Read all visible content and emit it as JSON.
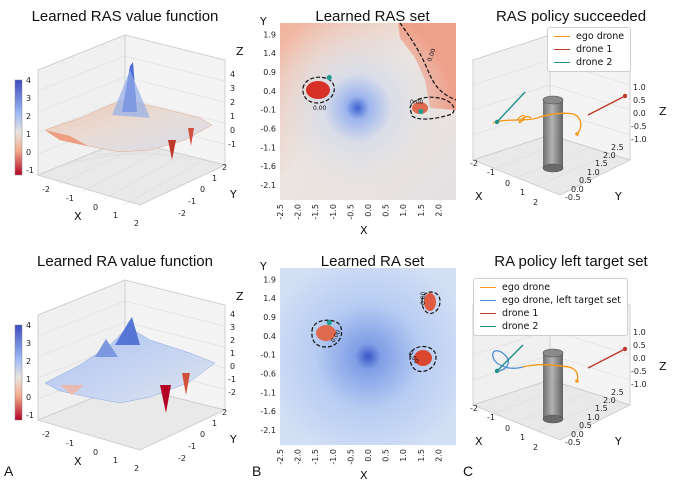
{
  "panel_letters": {
    "a": "A",
    "b": "B",
    "c": "C"
  },
  "chart_data": [
    {
      "type": "surface3d",
      "title": "Learned RAS value function",
      "xlabel": "X",
      "ylabel": "Y",
      "zlabel": "Z",
      "x_ticks": [
        "-2",
        "-1",
        "0",
        "1",
        "2"
      ],
      "y_ticks": [
        "-2",
        "-1",
        "0",
        "1",
        "2"
      ],
      "z_ticks": [
        "4",
        "3",
        "2",
        "1",
        "0",
        "-1"
      ],
      "colorbar_ticks": [
        "4",
        "3",
        "2",
        "1",
        "0",
        "-1"
      ],
      "colorbar": {
        "min": -1.5,
        "max": 4,
        "cmap": "coolwarm_r"
      }
    },
    {
      "type": "heatmap",
      "title": "Learned RAS set",
      "xlabel": "X",
      "ylabel": "Y",
      "x_ticks": [
        "-2.5",
        "-2.0",
        "-1.5",
        "-1.0",
        "-0.5",
        "0.0",
        "0.5",
        "1.0",
        "1.5",
        "2.0"
      ],
      "y_ticks": [
        "1.9",
        "1.4",
        "0.9",
        "0.4",
        "-0.1",
        "-0.6",
        "-1.1",
        "-1.6",
        "-2.1"
      ],
      "xlim": [
        -2.5,
        2.5
      ],
      "ylim": [
        -2.5,
        2.2
      ],
      "contour_label": "0.00",
      "target": {
        "x": -0.05,
        "y": -0.1
      },
      "obstacle_points": [
        {
          "x": -1.1,
          "y": 0.75
        },
        {
          "x": 1.5,
          "y": -0.15
        }
      ]
    },
    {
      "type": "trajectory3d",
      "title": "RAS policy succeeded",
      "xlabel": "X",
      "ylabel": "Y",
      "zlabel": "Z",
      "x_ticks": [
        "-2",
        "-1",
        "0",
        "1",
        "2"
      ],
      "y_ticks": [
        "-0.5",
        "0.0",
        "0.5",
        "1.0",
        "1.5",
        "2.0",
        "2.5"
      ],
      "z_ticks": [
        "1.0",
        "0.5",
        "0.0",
        "-0.5",
        "-1.0"
      ],
      "series": [
        {
          "name": "ego drone",
          "color": "#f39a1c"
        },
        {
          "name": "drone 1",
          "color": "#c0392b"
        },
        {
          "name": "drone 2",
          "color": "#1f8f8a"
        }
      ]
    },
    {
      "type": "surface3d",
      "title": "Learned RA value function",
      "xlabel": "X",
      "ylabel": "Y",
      "zlabel": "Z",
      "x_ticks": [
        "-2",
        "-1",
        "0",
        "1",
        "2"
      ],
      "y_ticks": [
        "-2",
        "-1",
        "0",
        "1",
        "2"
      ],
      "z_ticks": [
        "4",
        "3",
        "2",
        "1",
        "0",
        "-1",
        "-2"
      ],
      "colorbar_ticks": [
        "4",
        "3",
        "2",
        "1",
        "0",
        "-1"
      ],
      "colorbar": {
        "min": -1.5,
        "max": 4,
        "cmap": "coolwarm_r"
      }
    },
    {
      "type": "heatmap",
      "title": "Learned RA set",
      "xlabel": "X",
      "ylabel": "Y",
      "x_ticks": [
        "-2.5",
        "-2.0",
        "-1.5",
        "-1.0",
        "-0.5",
        "0.0",
        "0.5",
        "1.0",
        "1.5",
        "2.0"
      ],
      "y_ticks": [
        "1.9",
        "1.4",
        "0.9",
        "0.4",
        "-0.1",
        "-0.6",
        "-1.1",
        "-1.6",
        "-2.1"
      ],
      "xlim": [
        -2.5,
        2.5
      ],
      "ylim": [
        -2.5,
        2.2
      ],
      "contour_label": "0.00",
      "target": {
        "x": -0.05,
        "y": -0.1
      },
      "obstacle_points": [
        {
          "x": -1.1,
          "y": 0.75
        }
      ]
    },
    {
      "type": "trajectory3d",
      "title": "RA policy left target set",
      "xlabel": "X",
      "ylabel": "Y",
      "zlabel": "Z",
      "x_ticks": [
        "-2",
        "-1",
        "0",
        "1",
        "2"
      ],
      "y_ticks": [
        "-0.5",
        "0.0",
        "0.5",
        "1.0",
        "1.5",
        "2.0",
        "2.5"
      ],
      "z_ticks": [
        "1.0",
        "0.5",
        "0.0",
        "-0.5",
        "-1.0"
      ],
      "series": [
        {
          "name": "ego drone",
          "color": "#f39a1c"
        },
        {
          "name": "ego drone, left target set",
          "color": "#4d8fd6"
        },
        {
          "name": "drone 1",
          "color": "#c0392b"
        },
        {
          "name": "drone 2",
          "color": "#1f8f8a"
        }
      ]
    }
  ]
}
